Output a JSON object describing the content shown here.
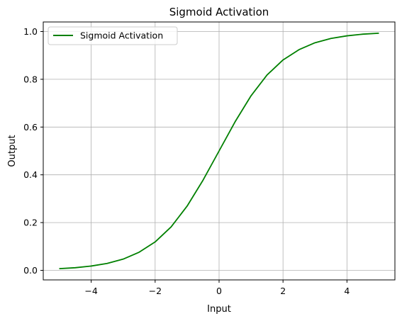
{
  "chart_data": {
    "type": "line",
    "title": "Sigmoid Activation",
    "xlabel": "Input",
    "ylabel": "Output",
    "xlim": [
      -5.5,
      5.5
    ],
    "ylim": [
      -0.04,
      1.04
    ],
    "grid": true,
    "legend_position": "top-left",
    "x_ticks": [
      -4,
      -2,
      0,
      2,
      4
    ],
    "x_tick_labels": [
      "−4",
      "−2",
      "0",
      "2",
      "4"
    ],
    "y_ticks": [
      0.0,
      0.2,
      0.4,
      0.6,
      0.8,
      1.0
    ],
    "y_tick_labels": [
      "0.0",
      "0.2",
      "0.4",
      "0.6",
      "0.8",
      "1.0"
    ],
    "series": [
      {
        "name": "Sigmoid Activation",
        "color": "#008000",
        "x": [
          -5,
          -4.5,
          -4,
          -3.5,
          -3,
          -2.5,
          -2,
          -1.5,
          -1,
          -0.5,
          0,
          0.5,
          1,
          1.5,
          2,
          2.5,
          3,
          3.5,
          4,
          4.5,
          5
        ],
        "y": [
          0.007,
          0.011,
          0.018,
          0.029,
          0.047,
          0.076,
          0.119,
          0.182,
          0.269,
          0.378,
          0.5,
          0.622,
          0.731,
          0.818,
          0.881,
          0.924,
          0.953,
          0.971,
          0.982,
          0.989,
          0.993
        ]
      }
    ]
  }
}
